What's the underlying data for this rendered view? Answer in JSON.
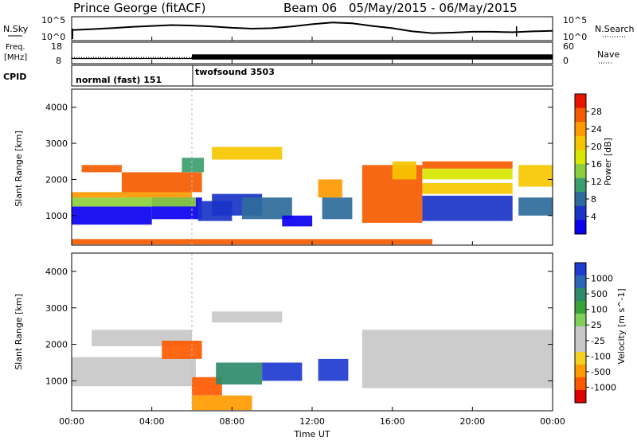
{
  "header": {
    "station": "Prince George (fitACF)",
    "beam": "Beam 06",
    "dates": "05/May/2015 - 06/May/2015"
  },
  "strip": {
    "nsky_label": "N.Sky",
    "nsearch_label": "N.Search",
    "nsky_ticks": [
      "10^5",
      "10^0"
    ],
    "nsky_right_ticks": [
      "10^5",
      "10^0"
    ],
    "freq_label_1": "Freq.",
    "freq_label_2": "[MHz]",
    "freq_ticks": [
      "18",
      "8"
    ],
    "nave_label": "Nave",
    "nave_ticks": [
      "60",
      "0"
    ],
    "cpid_label": "CPID",
    "modes": [
      {
        "name": "normal (fast) 151",
        "start_hour": 0,
        "end_hour": 6
      },
      {
        "name": "twofsound 3503",
        "start_hour": 6,
        "end_hour": 24
      }
    ]
  },
  "axes": {
    "ylabel": "Slant Range [km]",
    "yticks": [
      "4000",
      "3000",
      "2000",
      "1000"
    ],
    "xlabel": "Time UT",
    "xticks": [
      "00:00",
      "04:00",
      "08:00",
      "12:00",
      "16:00",
      "20:00",
      "00:00"
    ]
  },
  "power_colorbar": {
    "label": "Power [dB]",
    "ticks": [
      "28",
      "24",
      "20",
      "16",
      "12",
      "8",
      "4"
    ],
    "colors": [
      "#e81400",
      "#f55b00",
      "#ff9900",
      "#f6c500",
      "#d8e600",
      "#8ccf3c",
      "#3c9e6e",
      "#2e6b9a",
      "#1a34c8",
      "#0a00f0"
    ]
  },
  "velocity_colorbar": {
    "label": "Velocity [m s^-1]",
    "ticks": [
      "1000",
      "500",
      "100",
      "25",
      "-25",
      "-100",
      "-500",
      "-1000"
    ],
    "colors": [
      "#1f3bd0",
      "#2b66b8",
      "#2f8a6a",
      "#3aa23a",
      "#7fd05a",
      "#c8c8c8",
      "#c8c8c8",
      "#f0d020",
      "#ff9a00",
      "#ff5a00",
      "#e00000"
    ]
  },
  "chart_data": [
    {
      "type": "line",
      "title": "N.Sky / N.Search",
      "x_unit": "hours UT",
      "x": [
        0,
        1,
        2,
        3,
        4,
        5,
        6,
        7,
        8,
        9,
        10,
        11,
        12,
        13,
        14,
        15,
        16,
        17,
        18,
        19,
        20,
        21,
        22,
        23,
        24
      ],
      "series": [
        {
          "name": "N.Sky",
          "values": [
            2.2,
            2.4,
            2.6,
            2.9,
            3.1,
            3.3,
            3.2,
            3.0,
            2.7,
            2.5,
            2.6,
            3.0,
            3.5,
            3.9,
            3.7,
            3.1,
            2.6,
            1.9,
            1.5,
            1.6,
            1.8,
            1.8,
            1.7,
            1.9,
            2.0
          ]
        }
      ],
      "ylim_log10": [
        0,
        5
      ]
    },
    {
      "type": "line",
      "title": "Freq. / Nave",
      "x_unit": "hours UT",
      "series": [
        {
          "name": "Freq. [MHz]",
          "segments": [
            {
              "start_hour": 0,
              "end_hour": 6,
              "value_low": 10.5,
              "value_high": 11.0,
              "style": "dotted"
            },
            {
              "start_hour": 6,
              "end_hour": 24,
              "value_low": 10.0,
              "value_high": 12.5,
              "style": "dense"
            }
          ]
        }
      ],
      "ylim": [
        8,
        18
      ]
    },
    {
      "type": "heatmap",
      "title": "Power",
      "x_unit": "hours UT",
      "y_unit": "km",
      "xlim": [
        0,
        24
      ],
      "ylim": [
        180,
        4500
      ],
      "bands": [
        {
          "t0": 0.0,
          "t1": 4.0,
          "r0": 750,
          "r1": 1250,
          "level": 9
        },
        {
          "t0": 4.0,
          "t1": 6.5,
          "r0": 900,
          "r1": 1500,
          "level": 9
        },
        {
          "t0": 0.0,
          "t1": 6.2,
          "r0": 1250,
          "r1": 1500,
          "level": 5
        },
        {
          "t0": 0.0,
          "t1": 6.0,
          "r0": 1500,
          "r1": 1650,
          "level": 2
        },
        {
          "t0": 2.5,
          "t1": 6.5,
          "r0": 1650,
          "r1": 2200,
          "level": 1
        },
        {
          "t0": 0.5,
          "t1": 2.5,
          "r0": 2200,
          "r1": 2400,
          "level": 1
        },
        {
          "t0": 5.5,
          "t1": 6.6,
          "r0": 2200,
          "r1": 2600,
          "level": 6
        },
        {
          "t0": 6.3,
          "t1": 8.0,
          "r0": 850,
          "r1": 1400,
          "level": 8
        },
        {
          "t0": 7.0,
          "t1": 9.5,
          "r0": 1000,
          "r1": 1600,
          "level": 8
        },
        {
          "t0": 8.5,
          "t1": 11.0,
          "r0": 900,
          "r1": 1500,
          "level": 7
        },
        {
          "t0": 7.0,
          "t1": 10.5,
          "r0": 2550,
          "r1": 2900,
          "level": 3
        },
        {
          "t0": 10.5,
          "t1": 12.0,
          "r0": 700,
          "r1": 1000,
          "level": 9
        },
        {
          "t0": 12.5,
          "t1": 14.0,
          "r0": 900,
          "r1": 1500,
          "level": 7
        },
        {
          "t0": 12.3,
          "t1": 13.5,
          "r0": 1500,
          "r1": 2000,
          "level": 2
        },
        {
          "t0": 14.5,
          "t1": 17.5,
          "r0": 800,
          "r1": 2400,
          "level": 1
        },
        {
          "t0": 16.0,
          "t1": 17.2,
          "r0": 2000,
          "r1": 2500,
          "level": 3
        },
        {
          "t0": 17.5,
          "t1": 22.0,
          "r0": 850,
          "r1": 1550,
          "level": 8
        },
        {
          "t0": 17.5,
          "t1": 22.0,
          "r0": 1600,
          "r1": 1900,
          "level": 3
        },
        {
          "t0": 17.5,
          "t1": 22.0,
          "r0": 2000,
          "r1": 2300,
          "level": 4
        },
        {
          "t0": 17.5,
          "t1": 22.0,
          "r0": 2300,
          "r1": 2500,
          "level": 1
        },
        {
          "t0": 22.3,
          "t1": 24.0,
          "r0": 1000,
          "r1": 1500,
          "level": 7
        },
        {
          "t0": 22.3,
          "t1": 24.0,
          "r0": 1800,
          "r1": 2400,
          "level": 3
        },
        {
          "t0": 0.0,
          "t1": 18.0,
          "r0": 200,
          "r1": 350,
          "level": 1
        }
      ]
    },
    {
      "type": "heatmap",
      "title": "Velocity",
      "x_unit": "hours UT",
      "y_unit": "km",
      "xlim": [
        0,
        24
      ],
      "ylim": [
        180,
        4500
      ],
      "bands": [
        {
          "t0": 0.0,
          "t1": 6.2,
          "r0": 850,
          "r1": 1650,
          "level": 5
        },
        {
          "t0": 1.0,
          "t1": 6.0,
          "r0": 1950,
          "r1": 2400,
          "level": 5
        },
        {
          "t0": 4.5,
          "t1": 6.5,
          "r0": 1600,
          "r1": 2100,
          "level": 9
        },
        {
          "t0": 6.0,
          "t1": 7.5,
          "r0": 600,
          "r1": 1100,
          "level": 9
        },
        {
          "t0": 7.2,
          "t1": 9.5,
          "r0": 900,
          "r1": 1500,
          "level": 2
        },
        {
          "t0": 9.5,
          "t1": 11.5,
          "r0": 1000,
          "r1": 1500,
          "level": 0
        },
        {
          "t0": 12.3,
          "t1": 13.8,
          "r0": 1000,
          "r1": 1600,
          "level": 0
        },
        {
          "t0": 7.0,
          "t1": 10.5,
          "r0": 2600,
          "r1": 2900,
          "level": 5
        },
        {
          "t0": 14.5,
          "t1": 24.0,
          "r0": 800,
          "r1": 2400,
          "level": 5
        },
        {
          "t0": 6.0,
          "t1": 9.0,
          "r0": 200,
          "r1": 600,
          "level": 8
        }
      ]
    }
  ]
}
